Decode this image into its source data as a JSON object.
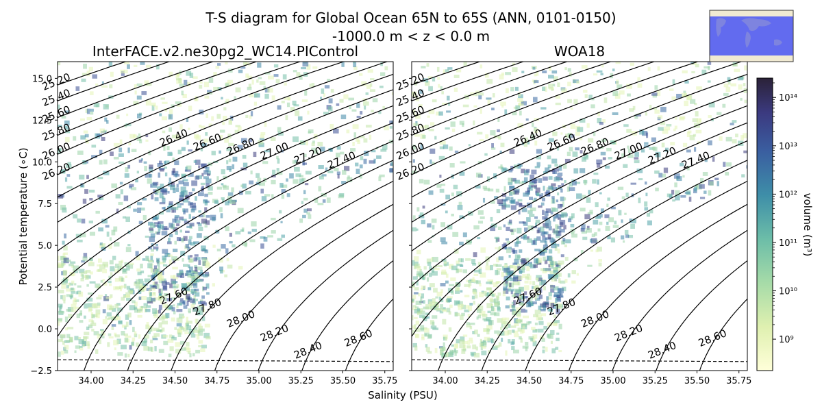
{
  "figure": {
    "title_line1": "T-S diagram for Global Ocean 65N to 65S (ANN, 0101-0150)",
    "title_line2": "-1000.0 m < z < 0.0 m",
    "xlabel": "Salinity (PSU)",
    "ylabel": "Potential temperature (∘C)",
    "colorbar_label": "volume (m³)"
  },
  "colors": {
    "density_contour": "#000000",
    "freezing_line": "#000000",
    "map_ocean": "#5a64f0",
    "map_land": "#f1ead2",
    "cmap_low": "#ffffd9",
    "cmap_mid": "#3e8ea8",
    "cmap_high": "#2b2238"
  },
  "chart_data": [
    {
      "type": "heatmap",
      "panel": "left",
      "title": "InterFACE.v2.ne30pg2_WC14.PIControl",
      "xlim": [
        33.8,
        35.8
      ],
      "ylim": [
        -2.5,
        16.0
      ],
      "xticks": [
        "34.00",
        "34.25",
        "34.50",
        "34.75",
        "35.00",
        "35.25",
        "35.50",
        "35.75"
      ],
      "yticks": [
        "−2.5",
        "0.0",
        "2.5",
        "5.0",
        "7.5",
        "10.0",
        "12.5",
        "15.0"
      ],
      "contour_levels": [
        "25.20",
        "25.40",
        "25.60",
        "25.80",
        "26.00",
        "26.20",
        "26.40",
        "26.60",
        "26.80",
        "27.00",
        "27.20",
        "27.40",
        "27.60",
        "27.80",
        "28.00",
        "28.20",
        "28.40",
        "28.60"
      ],
      "freezing_line": {
        "S": [
          33.8,
          35.8
        ],
        "T": [
          -1.85,
          -1.96
        ]
      }
    },
    {
      "type": "heatmap",
      "panel": "right",
      "title": "WOA18",
      "xlim": [
        33.8,
        35.8
      ],
      "ylim": [
        -2.5,
        16.0
      ],
      "xticks": [
        "34.00",
        "34.25",
        "34.50",
        "34.75",
        "35.00",
        "35.25",
        "35.50",
        "35.75"
      ],
      "yticks": [
        "",
        "",
        "",
        "",
        "",
        "",
        "",
        ""
      ],
      "contour_levels": [
        "25.20",
        "25.40",
        "25.60",
        "25.80",
        "26.00",
        "26.20",
        "26.40",
        "26.60",
        "26.80",
        "27.00",
        "27.20",
        "27.40",
        "27.60",
        "27.80",
        "28.00",
        "28.20",
        "28.40",
        "28.60"
      ],
      "freezing_line": {
        "S": [
          33.8,
          35.8
        ],
        "T": [
          -1.85,
          -1.96
        ]
      }
    },
    {
      "type": "colorbar",
      "scale": "log",
      "range_exp": [
        8.35,
        14.4
      ],
      "tick_exponents": [
        9,
        10,
        11,
        12,
        13,
        14
      ],
      "tick_labels": [
        "10⁹",
        "10¹⁰",
        "10¹¹",
        "10¹²",
        "10¹³",
        "10¹⁴"
      ]
    }
  ]
}
